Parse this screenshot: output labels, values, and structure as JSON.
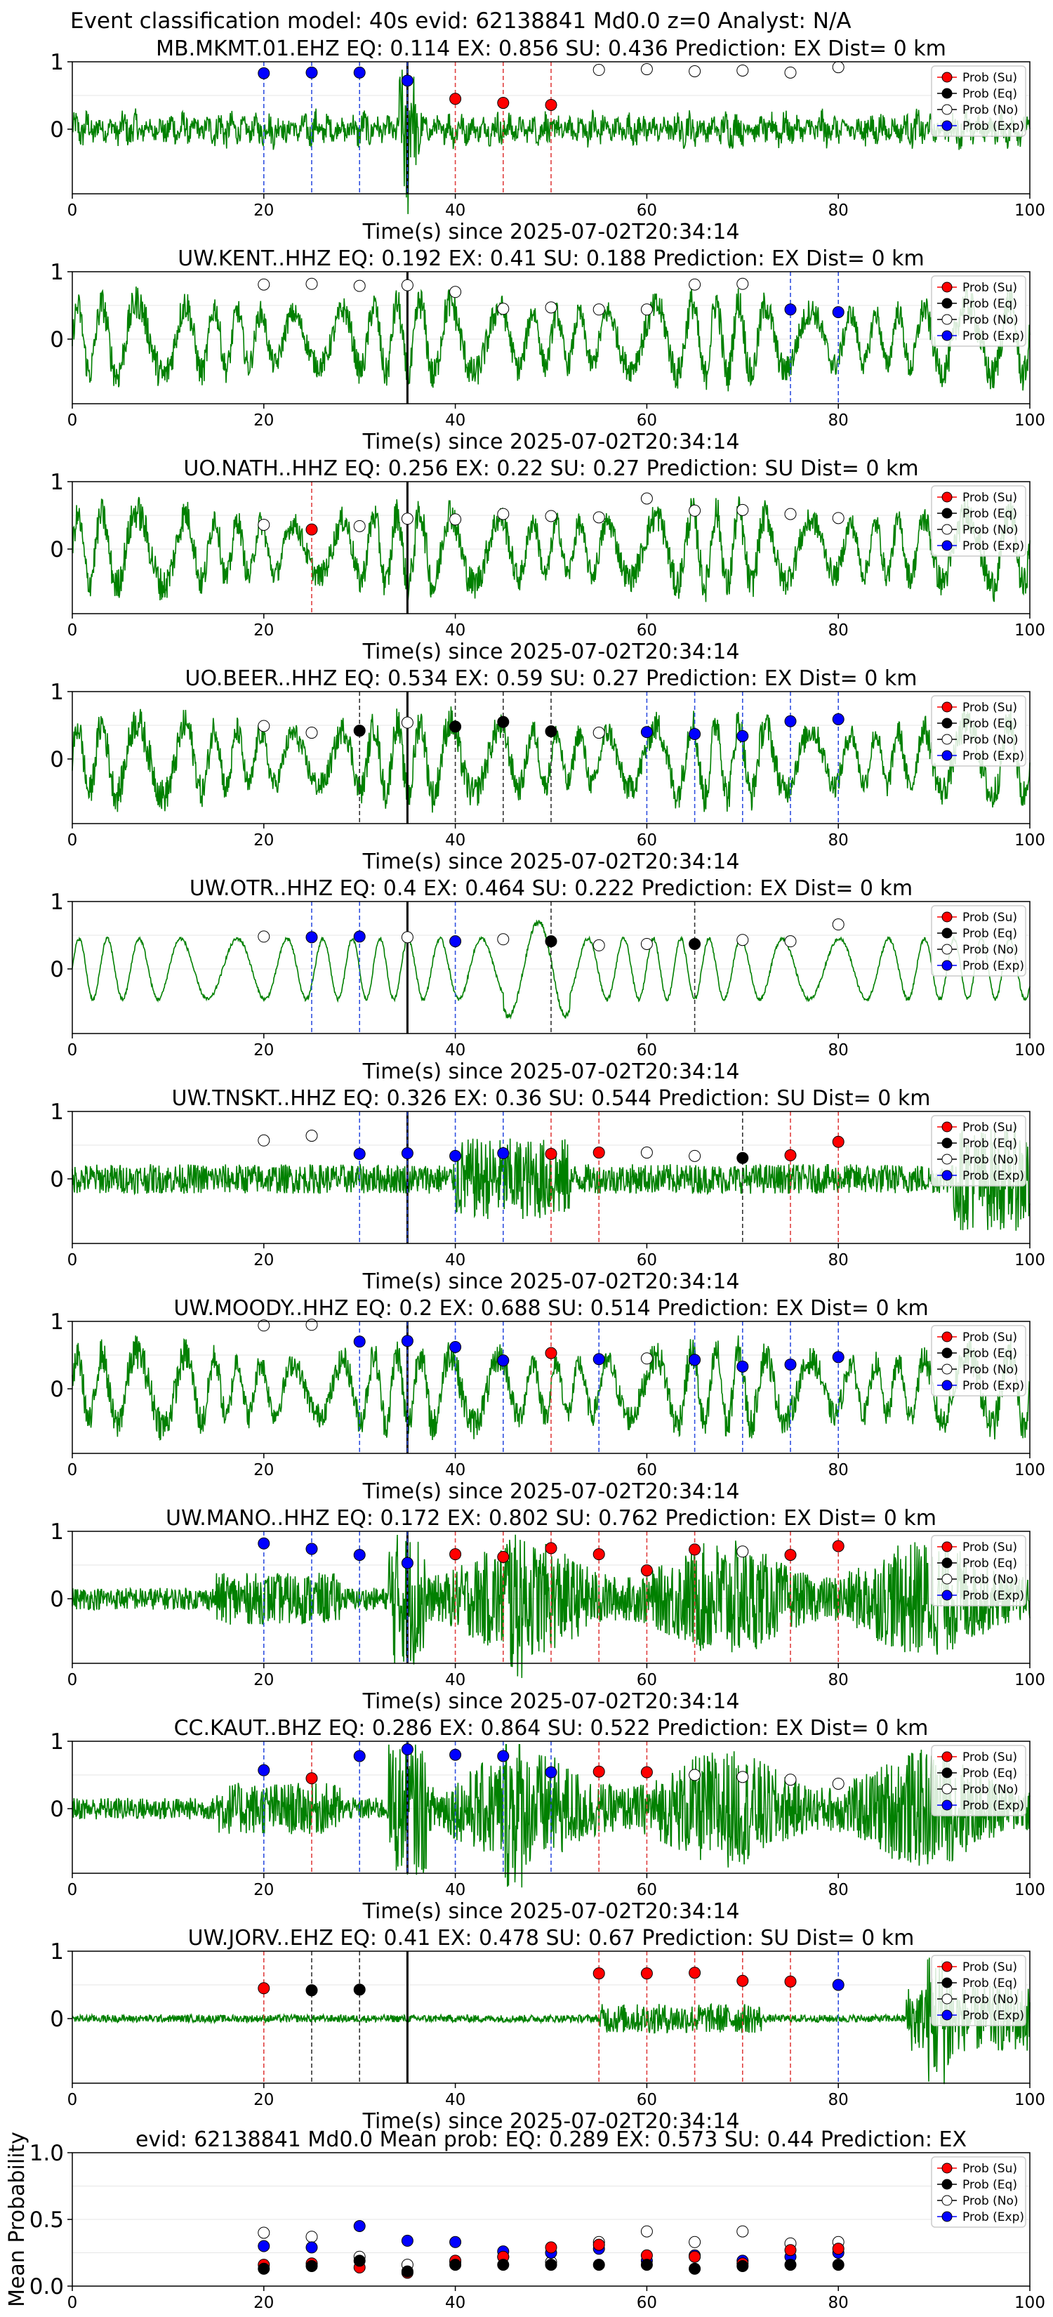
{
  "figure_title": "Event classification model: 40s evid: 62138841 Md0.0 z=0 Analyst: N/A",
  "legend_labels": [
    "Prob (Su)",
    "Prob (Eq)",
    "Prob (No)",
    "Prob (Exp)"
  ],
  "colors": {
    "su": "#ff0000",
    "eq": "#000000",
    "no": "#ffffff",
    "exp": "#0000ff",
    "trace": "#008000"
  },
  "chart_data": [
    {
      "type": "line",
      "station": "MB.MKMT.01.EHZ",
      "title": "MB.MKMT.01.EHZ   EQ: 0.114  EX: 0.856  SU: 0.436   Prediction: EX    Dist= 0 km",
      "xlabel": "Time(s) since 2025-07-02T20:34:14",
      "xlim": [
        0,
        100
      ],
      "xticks": [
        0,
        20,
        40,
        60,
        80,
        100
      ],
      "yticks": [
        0,
        1
      ],
      "pick_time": 35,
      "trace_style": "spiky",
      "points": [
        {
          "x": 20,
          "cls": "exp",
          "y": 0.83
        },
        {
          "x": 25,
          "cls": "exp",
          "y": 0.84
        },
        {
          "x": 30,
          "cls": "exp",
          "y": 0.84
        },
        {
          "x": 35,
          "cls": "exp",
          "y": 0.72
        },
        {
          "x": 40,
          "cls": "su",
          "y": 0.45
        },
        {
          "x": 45,
          "cls": "su",
          "y": 0.39
        },
        {
          "x": 50,
          "cls": "su",
          "y": 0.36
        },
        {
          "x": 55,
          "cls": "no",
          "y": 0.88
        },
        {
          "x": 60,
          "cls": "no",
          "y": 0.89
        },
        {
          "x": 65,
          "cls": "no",
          "y": 0.86
        },
        {
          "x": 70,
          "cls": "no",
          "y": 0.87
        },
        {
          "x": 75,
          "cls": "no",
          "y": 0.84
        },
        {
          "x": 80,
          "cls": "no",
          "y": 0.92
        }
      ]
    },
    {
      "type": "line",
      "station": "UW.KENT..HHZ",
      "title": "UW.KENT..HHZ   EQ: 0.192  EX: 0.41  SU: 0.188   Prediction: EX    Dist= 0 km",
      "xlabel": "Time(s) since 2025-07-02T20:34:14",
      "xlim": [
        0,
        100
      ],
      "xticks": [
        0,
        20,
        40,
        60,
        80,
        100
      ],
      "yticks": [
        0,
        1
      ],
      "pick_time": 35,
      "trace_style": "oscillating",
      "points": [
        {
          "x": 20,
          "cls": "no",
          "y": 0.81
        },
        {
          "x": 25,
          "cls": "no",
          "y": 0.82
        },
        {
          "x": 30,
          "cls": "no",
          "y": 0.79
        },
        {
          "x": 35,
          "cls": "no",
          "y": 0.8
        },
        {
          "x": 40,
          "cls": "no",
          "y": 0.7
        },
        {
          "x": 45,
          "cls": "no",
          "y": 0.45
        },
        {
          "x": 50,
          "cls": "no",
          "y": 0.47
        },
        {
          "x": 55,
          "cls": "no",
          "y": 0.44
        },
        {
          "x": 60,
          "cls": "no",
          "y": 0.44
        },
        {
          "x": 65,
          "cls": "no",
          "y": 0.81
        },
        {
          "x": 70,
          "cls": "no",
          "y": 0.82
        },
        {
          "x": 75,
          "cls": "exp",
          "y": 0.44
        },
        {
          "x": 80,
          "cls": "exp",
          "y": 0.4
        }
      ]
    },
    {
      "type": "line",
      "station": "UO.NATH..HHZ",
      "title": "UO.NATH..HHZ   EQ: 0.256  EX: 0.22  SU: 0.27   Prediction: SU    Dist= 0 km",
      "xlabel": "Time(s) since 2025-07-02T20:34:14",
      "xlim": [
        0,
        100
      ],
      "xticks": [
        0,
        20,
        40,
        60,
        80,
        100
      ],
      "yticks": [
        0,
        1
      ],
      "pick_time": 35,
      "trace_style": "oscillating",
      "points": [
        {
          "x": 20,
          "cls": "no",
          "y": 0.36
        },
        {
          "x": 25,
          "cls": "su",
          "y": 0.29
        },
        {
          "x": 30,
          "cls": "no",
          "y": 0.34
        },
        {
          "x": 35,
          "cls": "no",
          "y": 0.45
        },
        {
          "x": 40,
          "cls": "no",
          "y": 0.44
        },
        {
          "x": 45,
          "cls": "no",
          "y": 0.52
        },
        {
          "x": 50,
          "cls": "no",
          "y": 0.49
        },
        {
          "x": 55,
          "cls": "no",
          "y": 0.47
        },
        {
          "x": 60,
          "cls": "no",
          "y": 0.75
        },
        {
          "x": 65,
          "cls": "no",
          "y": 0.57
        },
        {
          "x": 70,
          "cls": "no",
          "y": 0.58
        },
        {
          "x": 75,
          "cls": "no",
          "y": 0.52
        },
        {
          "x": 80,
          "cls": "no",
          "y": 0.46
        }
      ]
    },
    {
      "type": "line",
      "station": "UO.BEER..HHZ",
      "title": "UO.BEER..HHZ   EQ: 0.534  EX: 0.59  SU: 0.27   Prediction: EX    Dist= 0 km",
      "xlabel": "Time(s) since 2025-07-02T20:34:14",
      "xlim": [
        0,
        100
      ],
      "xticks": [
        0,
        20,
        40,
        60,
        80,
        100
      ],
      "yticks": [
        0,
        1
      ],
      "pick_time": 35,
      "trace_style": "oscillating",
      "points": [
        {
          "x": 20,
          "cls": "no",
          "y": 0.49
        },
        {
          "x": 25,
          "cls": "no",
          "y": 0.39
        },
        {
          "x": 30,
          "cls": "eq",
          "y": 0.42
        },
        {
          "x": 35,
          "cls": "no",
          "y": 0.54
        },
        {
          "x": 40,
          "cls": "eq",
          "y": 0.48
        },
        {
          "x": 45,
          "cls": "eq",
          "y": 0.55
        },
        {
          "x": 50,
          "cls": "eq",
          "y": 0.41
        },
        {
          "x": 55,
          "cls": "no",
          "y": 0.39
        },
        {
          "x": 60,
          "cls": "exp",
          "y": 0.4
        },
        {
          "x": 65,
          "cls": "exp",
          "y": 0.37
        },
        {
          "x": 70,
          "cls": "exp",
          "y": 0.34
        },
        {
          "x": 75,
          "cls": "exp",
          "y": 0.56
        },
        {
          "x": 80,
          "cls": "exp",
          "y": 0.59
        }
      ]
    },
    {
      "type": "line",
      "station": "UW.OTR..HHZ",
      "title": "UW.OTR..HHZ   EQ: 0.4  EX: 0.464  SU: 0.222   Prediction: EX    Dist= 0 km",
      "xlabel": "Time(s) since 2025-07-02T20:34:14",
      "xlim": [
        0,
        100
      ],
      "xticks": [
        0,
        20,
        40,
        60,
        80,
        100
      ],
      "yticks": [
        0,
        1
      ],
      "pick_time": 35,
      "trace_style": "smooth",
      "points": [
        {
          "x": 20,
          "cls": "no",
          "y": 0.48
        },
        {
          "x": 25,
          "cls": "exp",
          "y": 0.47
        },
        {
          "x": 30,
          "cls": "exp",
          "y": 0.48
        },
        {
          "x": 35,
          "cls": "no",
          "y": 0.47
        },
        {
          "x": 40,
          "cls": "exp",
          "y": 0.41
        },
        {
          "x": 45,
          "cls": "no",
          "y": 0.44
        },
        {
          "x": 50,
          "cls": "eq",
          "y": 0.41
        },
        {
          "x": 55,
          "cls": "no",
          "y": 0.35
        },
        {
          "x": 60,
          "cls": "no",
          "y": 0.37
        },
        {
          "x": 65,
          "cls": "eq",
          "y": 0.37
        },
        {
          "x": 70,
          "cls": "no",
          "y": 0.43
        },
        {
          "x": 75,
          "cls": "no",
          "y": 0.41
        },
        {
          "x": 80,
          "cls": "no",
          "y": 0.66
        }
      ]
    },
    {
      "type": "line",
      "station": "UW.TNSKT..HHZ",
      "title": "UW.TNSKT..HHZ   EQ: 0.326  EX: 0.36  SU: 0.544   Prediction: SU    Dist= 0 km",
      "xlabel": "Time(s) since 2025-07-02T20:34:14",
      "xlim": [
        0,
        100
      ],
      "xticks": [
        0,
        20,
        40,
        60,
        80,
        100
      ],
      "yticks": [
        0,
        1
      ],
      "pick_time": 35,
      "trace_style": "noisy",
      "points": [
        {
          "x": 20,
          "cls": "no",
          "y": 0.57
        },
        {
          "x": 25,
          "cls": "no",
          "y": 0.64
        },
        {
          "x": 30,
          "cls": "exp",
          "y": 0.37
        },
        {
          "x": 35,
          "cls": "exp",
          "y": 0.38
        },
        {
          "x": 40,
          "cls": "exp",
          "y": 0.34
        },
        {
          "x": 45,
          "cls": "exp",
          "y": 0.38
        },
        {
          "x": 50,
          "cls": "su",
          "y": 0.37
        },
        {
          "x": 55,
          "cls": "su",
          "y": 0.39
        },
        {
          "x": 60,
          "cls": "no",
          "y": 0.39
        },
        {
          "x": 65,
          "cls": "no",
          "y": 0.34
        },
        {
          "x": 70,
          "cls": "eq",
          "y": 0.31
        },
        {
          "x": 75,
          "cls": "su",
          "y": 0.35
        },
        {
          "x": 80,
          "cls": "su",
          "y": 0.55
        }
      ]
    },
    {
      "type": "line",
      "station": "UW.MOODY..HHZ",
      "title": "UW.MOODY..HHZ   EQ: 0.2  EX: 0.688  SU: 0.514   Prediction: EX    Dist= 0 km",
      "xlabel": "Time(s) since 2025-07-02T20:34:14",
      "xlim": [
        0,
        100
      ],
      "xticks": [
        0,
        20,
        40,
        60,
        80,
        100
      ],
      "yticks": [
        0,
        1
      ],
      "pick_time": 35,
      "trace_style": "oscillating",
      "points": [
        {
          "x": 20,
          "cls": "no",
          "y": 0.94
        },
        {
          "x": 25,
          "cls": "no",
          "y": 0.95
        },
        {
          "x": 30,
          "cls": "exp",
          "y": 0.7
        },
        {
          "x": 35,
          "cls": "exp",
          "y": 0.71
        },
        {
          "x": 40,
          "cls": "exp",
          "y": 0.62
        },
        {
          "x": 45,
          "cls": "exp",
          "y": 0.42
        },
        {
          "x": 50,
          "cls": "su",
          "y": 0.53
        },
        {
          "x": 55,
          "cls": "exp",
          "y": 0.44
        },
        {
          "x": 60,
          "cls": "no",
          "y": 0.45
        },
        {
          "x": 65,
          "cls": "exp",
          "y": 0.43
        },
        {
          "x": 70,
          "cls": "exp",
          "y": 0.33
        },
        {
          "x": 75,
          "cls": "exp",
          "y": 0.36
        },
        {
          "x": 80,
          "cls": "exp",
          "y": 0.47
        }
      ]
    },
    {
      "type": "line",
      "station": "UW.MANO..HHZ",
      "title": "UW.MANO..HHZ   EQ: 0.172  EX: 0.802  SU: 0.762   Prediction: EX    Dist= 0 km",
      "xlabel": "Time(s) since 2025-07-02T20:34:14",
      "xlim": [
        0,
        100
      ],
      "xticks": [
        0,
        20,
        40,
        60,
        80,
        100
      ],
      "yticks": [
        0,
        1
      ],
      "pick_time": 35,
      "trace_style": "burst",
      "points": [
        {
          "x": 20,
          "cls": "exp",
          "y": 0.82
        },
        {
          "x": 25,
          "cls": "exp",
          "y": 0.74
        },
        {
          "x": 30,
          "cls": "exp",
          "y": 0.65
        },
        {
          "x": 35,
          "cls": "exp",
          "y": 0.53
        },
        {
          "x": 40,
          "cls": "su",
          "y": 0.66
        },
        {
          "x": 45,
          "cls": "su",
          "y": 0.62
        },
        {
          "x": 50,
          "cls": "su",
          "y": 0.75
        },
        {
          "x": 55,
          "cls": "su",
          "y": 0.66
        },
        {
          "x": 60,
          "cls": "su",
          "y": 0.42
        },
        {
          "x": 65,
          "cls": "su",
          "y": 0.73
        },
        {
          "x": 70,
          "cls": "no",
          "y": 0.7
        },
        {
          "x": 75,
          "cls": "su",
          "y": 0.65
        },
        {
          "x": 80,
          "cls": "su",
          "y": 0.78
        }
      ]
    },
    {
      "type": "line",
      "station": "CC.KAUT..BHZ",
      "title": "CC.KAUT..BHZ   EQ: 0.286  EX: 0.864  SU: 0.522   Prediction: EX    Dist= 0 km",
      "xlabel": "Time(s) since 2025-07-02T20:34:14",
      "xlim": [
        0,
        100
      ],
      "xticks": [
        0,
        20,
        40,
        60,
        80,
        100
      ],
      "yticks": [
        0,
        1
      ],
      "pick_time": 35,
      "trace_style": "burst",
      "points": [
        {
          "x": 20,
          "cls": "exp",
          "y": 0.57
        },
        {
          "x": 25,
          "cls": "su",
          "y": 0.45
        },
        {
          "x": 30,
          "cls": "exp",
          "y": 0.78
        },
        {
          "x": 35,
          "cls": "exp",
          "y": 0.88
        },
        {
          "x": 40,
          "cls": "exp",
          "y": 0.8
        },
        {
          "x": 45,
          "cls": "exp",
          "y": 0.78
        },
        {
          "x": 50,
          "cls": "exp",
          "y": 0.54
        },
        {
          "x": 55,
          "cls": "su",
          "y": 0.55
        },
        {
          "x": 60,
          "cls": "su",
          "y": 0.54
        },
        {
          "x": 65,
          "cls": "no",
          "y": 0.5
        },
        {
          "x": 70,
          "cls": "no",
          "y": 0.47
        },
        {
          "x": 75,
          "cls": "no",
          "y": 0.43
        },
        {
          "x": 80,
          "cls": "no",
          "y": 0.37
        }
      ]
    },
    {
      "type": "line",
      "station": "UW.JORV..EHZ",
      "title": "UW.JORV..EHZ   EQ: 0.41  EX: 0.478  SU: 0.67   Prediction: SU    Dist= 0 km",
      "xlabel": "Time(s) since 2025-07-02T20:34:14",
      "xlim": [
        0,
        100
      ],
      "xticks": [
        0,
        20,
        40,
        60,
        80,
        100
      ],
      "yticks": [
        0,
        1
      ],
      "pick_time": 35,
      "trace_style": "quiet",
      "points": [
        {
          "x": 20,
          "cls": "su",
          "y": 0.45
        },
        {
          "x": 25,
          "cls": "eq",
          "y": 0.42
        },
        {
          "x": 30,
          "cls": "eq",
          "y": 0.43
        },
        {
          "x": 55,
          "cls": "su",
          "y": 0.67
        },
        {
          "x": 60,
          "cls": "su",
          "y": 0.67
        },
        {
          "x": 65,
          "cls": "su",
          "y": 0.68
        },
        {
          "x": 70,
          "cls": "su",
          "y": 0.56
        },
        {
          "x": 75,
          "cls": "su",
          "y": 0.55
        },
        {
          "x": 80,
          "cls": "exp",
          "y": 0.5
        }
      ]
    },
    {
      "type": "scatter",
      "station": "mean",
      "title": "evid: 62138841  Md0.0   Mean prob:   EQ: 0.289  EX: 0.573  SU: 0.44   Prediction: EX",
      "ylabel": "Mean Probability",
      "xlim": [
        0,
        100
      ],
      "ylim": [
        0,
        1
      ],
      "xticks": [
        0,
        20,
        40,
        60,
        80,
        100
      ],
      "yticks": [
        0.0,
        0.5,
        1.0
      ],
      "ytick_labels": [
        "0.0",
        "0.5",
        "1.0"
      ],
      "x": [
        20,
        25,
        30,
        35,
        40,
        45,
        50,
        55,
        60,
        65,
        70,
        75,
        80
      ],
      "series": [
        {
          "name": "Prob (No)",
          "cls": "no",
          "values": [
            0.4,
            0.37,
            0.22,
            0.16,
            0.18,
            0.22,
            0.18,
            0.33,
            0.41,
            0.33,
            0.41,
            0.32,
            0.33
          ]
        },
        {
          "name": "Prob (Exp)",
          "cls": "exp",
          "values": [
            0.3,
            0.29,
            0.45,
            0.34,
            0.33,
            0.26,
            0.25,
            0.28,
            0.19,
            0.23,
            0.19,
            0.22,
            0.25
          ]
        },
        {
          "name": "Prob (Su)",
          "cls": "su",
          "values": [
            0.16,
            0.17,
            0.14,
            0.1,
            0.19,
            0.22,
            0.29,
            0.31,
            0.23,
            0.22,
            0.17,
            0.27,
            0.28
          ]
        },
        {
          "name": "Prob (Eq)",
          "cls": "eq",
          "values": [
            0.13,
            0.15,
            0.19,
            0.11,
            0.16,
            0.16,
            0.16,
            0.16,
            0.16,
            0.13,
            0.15,
            0.16,
            0.16
          ]
        }
      ]
    }
  ]
}
